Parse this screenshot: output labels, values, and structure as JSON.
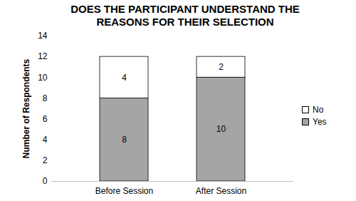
{
  "chart_data": {
    "type": "bar",
    "title": "DOES THE PARTICIPANT UNDERSTAND THE REASONS FOR THEIR SELECTION",
    "y_label": "Number of Respondents",
    "categories": [
      "Before Session",
      "After Session"
    ],
    "series": [
      {
        "name": "Yes",
        "color": "#a5a5a5",
        "values": [
          8,
          10
        ]
      },
      {
        "name": "No",
        "color": "#ffffff",
        "values": [
          4,
          2
        ]
      }
    ],
    "ylim": [
      0,
      14
    ],
    "yticks": [
      0,
      2,
      4,
      6,
      8,
      10,
      12,
      14
    ],
    "stacked": true,
    "data_labels": true,
    "legend": "right",
    "grid": false
  }
}
